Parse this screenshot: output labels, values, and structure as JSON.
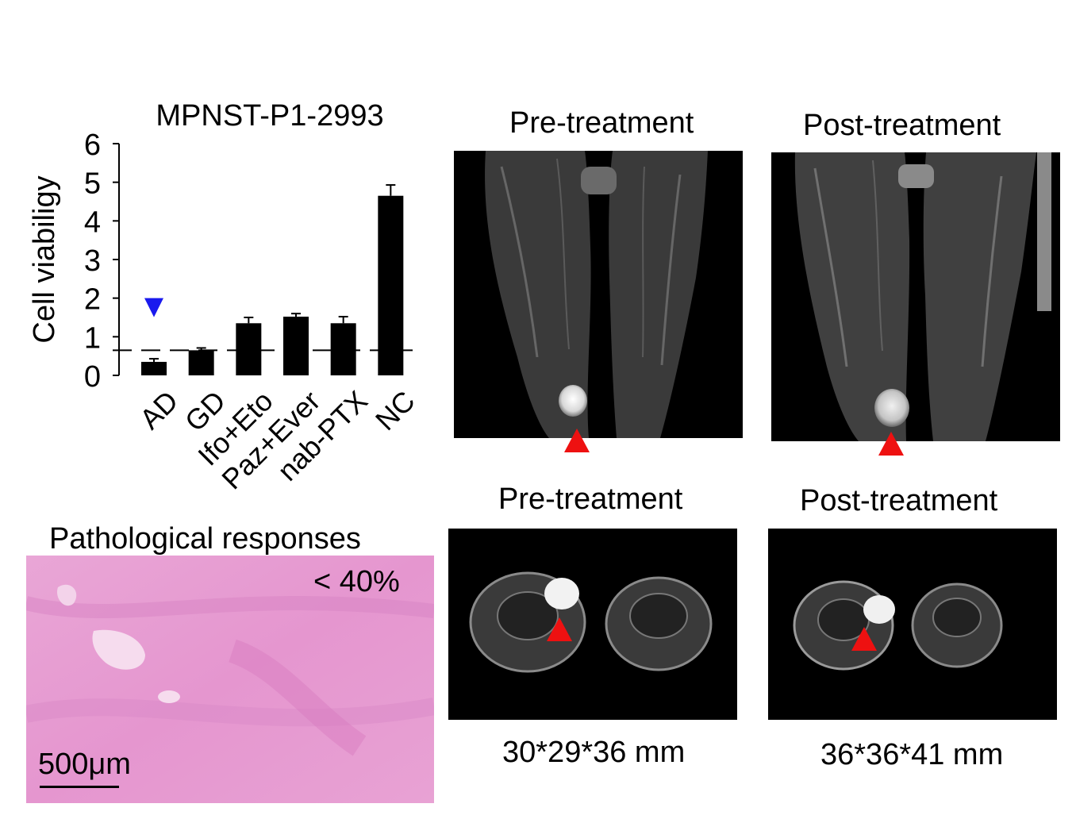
{
  "chart_data": {
    "type": "bar",
    "title": "MPNST-P1-2993",
    "ylabel": "Cell viabiligy",
    "xlabel": "",
    "ylim": [
      0,
      6
    ],
    "yticks": [
      "0",
      "1",
      "2",
      "3",
      "4",
      "5",
      "6"
    ],
    "categories": [
      "AD",
      "GD",
      "Ifo+Eto",
      "Paz+Ever",
      "nab-PTX",
      "NC"
    ],
    "values": [
      0.35,
      0.65,
      1.35,
      1.52,
      1.35,
      4.65
    ],
    "errors": [
      0.08,
      0.06,
      0.15,
      0.08,
      0.17,
      0.28
    ],
    "reference_line": 0.65,
    "bar_color": "#000000",
    "marker_color": "#1a1aee",
    "grid": false
  },
  "mri": {
    "coronal_pre_title": "Pre-treatment",
    "coronal_post_title": "Post-treatment",
    "axial_pre_title": "Pre-treatment",
    "axial_post_title": "Post-treatment",
    "axial_pre_size": "30*29*36 mm",
    "axial_post_size": "36*36*41 mm",
    "arrow_color": "#ee1111"
  },
  "pathology": {
    "title": "Pathological responses",
    "response": "< 40%",
    "scale_bar": "500μm"
  }
}
